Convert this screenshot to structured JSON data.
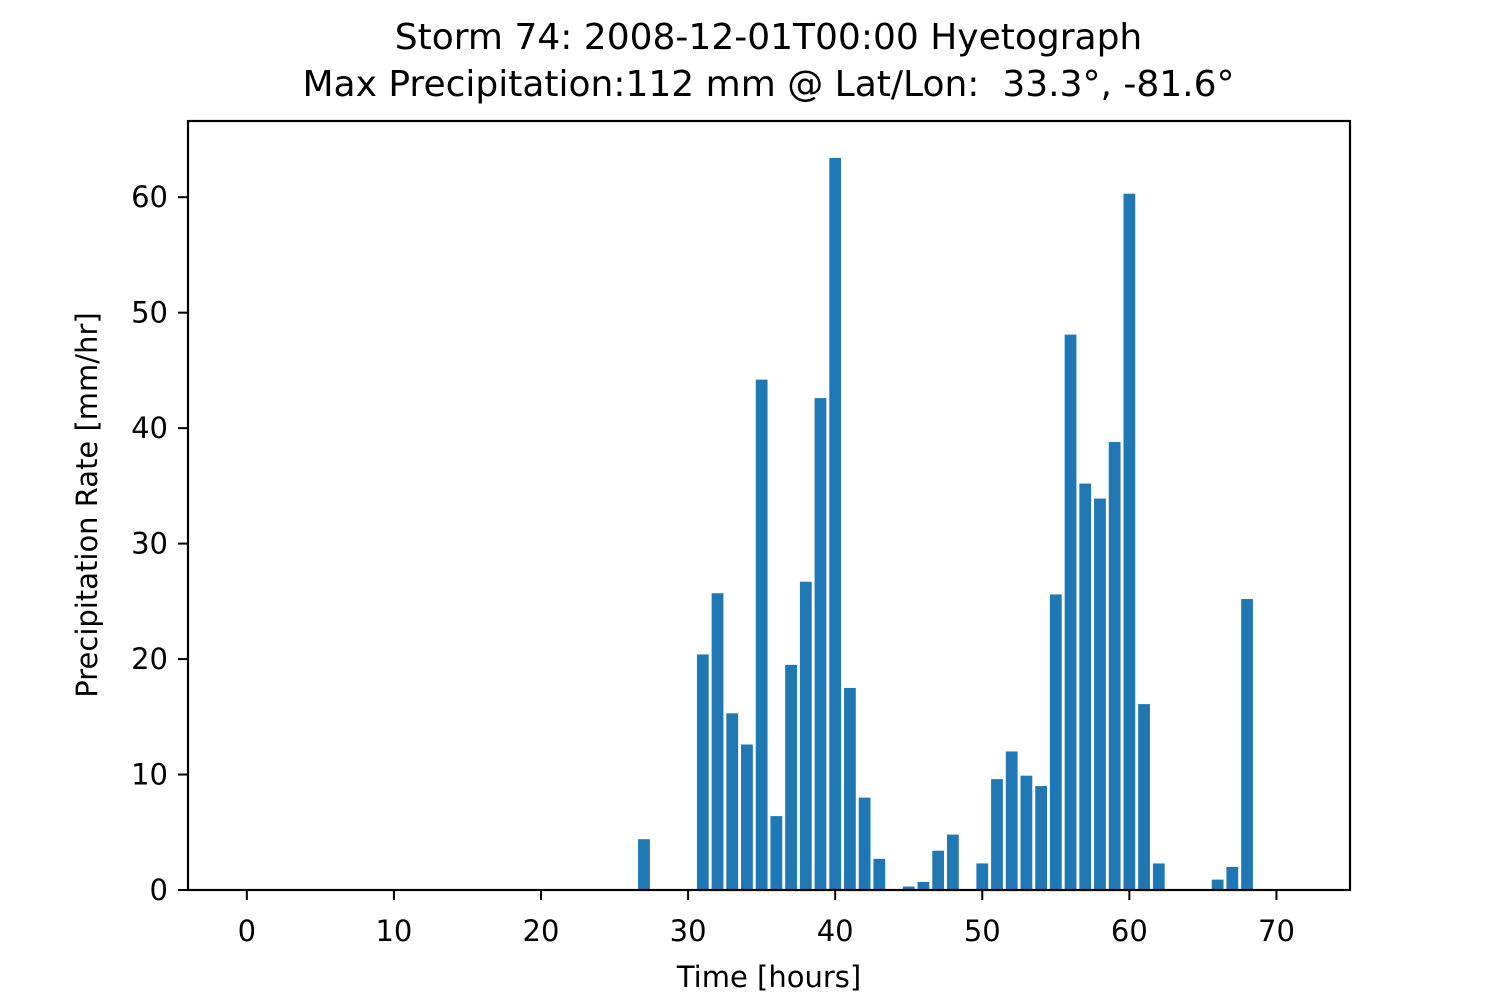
{
  "chart_data": {
    "type": "bar",
    "title": "Storm 74: 2008-12-01T00:00 Hyetograph",
    "subtitle": "Max Precipitation:112 mm @ Lat/Lon:  33.3°, -81.6°",
    "xlabel": "Time [hours]",
    "ylabel": "Precipitation Rate [mm/hr]",
    "xlim": [
      -4,
      75
    ],
    "ylim": [
      0,
      66.6
    ],
    "xticks": [
      0,
      10,
      20,
      30,
      40,
      50,
      60,
      70
    ],
    "yticks": [
      0,
      10,
      20,
      30,
      40,
      50,
      60
    ],
    "grid": false,
    "bar_color": "#1f77b4",
    "series": [
      {
        "x": [
          27,
          31,
          32,
          33,
          34,
          35,
          36,
          37,
          38,
          39,
          40,
          41,
          42,
          43,
          45,
          46,
          47,
          48,
          50,
          51,
          52,
          53,
          54,
          55,
          56,
          57,
          58,
          59,
          60,
          61,
          62,
          66,
          67,
          68
        ],
        "values": [
          4.4,
          20.4,
          25.7,
          15.3,
          12.6,
          44.2,
          6.4,
          19.5,
          26.7,
          42.6,
          63.4,
          17.5,
          8.0,
          2.7,
          0.3,
          0.7,
          3.4,
          4.8,
          2.3,
          9.6,
          12.0,
          9.9,
          9.0,
          25.6,
          48.1,
          35.2,
          33.9,
          38.8,
          60.3,
          16.1,
          2.3,
          0.9,
          2.0,
          25.2
        ]
      }
    ]
  }
}
